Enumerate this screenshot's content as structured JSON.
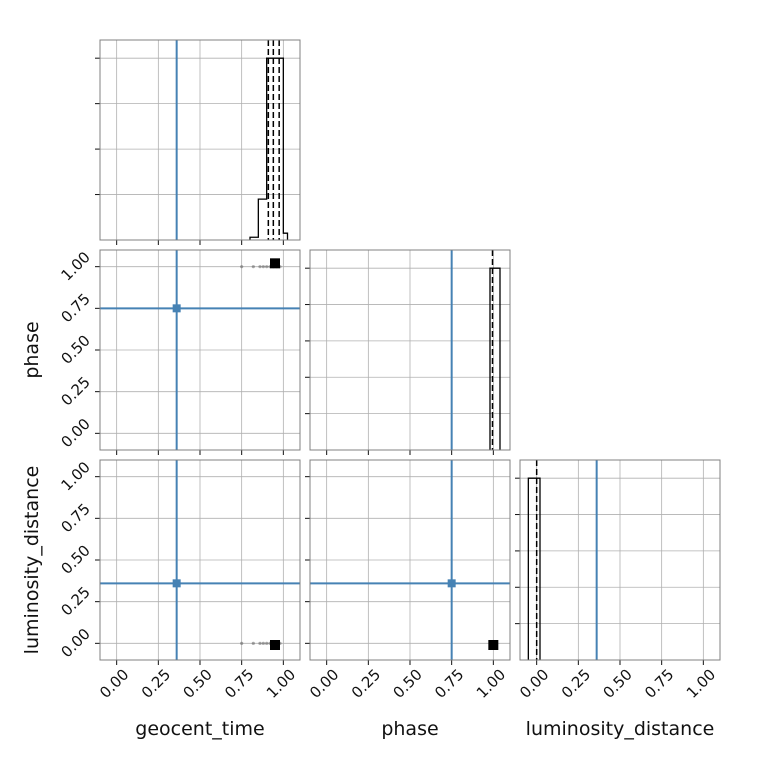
{
  "chart_data": {
    "type": "corner",
    "parameters": [
      "geocent_time",
      "phase",
      "luminosity_distance"
    ],
    "axis_range": [
      -0.1,
      1.1
    ],
    "tick_labels": [
      "0.00",
      "0.25",
      "0.50",
      "0.75",
      "1.00"
    ],
    "grid": true,
    "truths": {
      "geocent_time": 0.36,
      "phase": 0.75,
      "luminosity_distance": 0.36
    },
    "quantiles": {
      "geocent_time": [
        0.91,
        0.94,
        0.975
      ],
      "phase": [
        0.995
      ],
      "luminosity_distance": [
        0.0
      ]
    },
    "histograms": {
      "geocent_time": {
        "edges": [
          0.8,
          0.85,
          0.9,
          0.95,
          1.0,
          1.025
        ],
        "counts": [
          0.06,
          0.9,
          4.0,
          4.0,
          0.15
        ],
        "ylim": [
          0,
          4.4
        ]
      },
      "phase": {
        "edges": [
          0.98,
          1.04
        ],
        "counts": [
          1.0
        ],
        "ylim": [
          0,
          1.1
        ]
      },
      "luminosity_distance": {
        "edges": [
          -0.05,
          0.02
        ],
        "counts": [
          1.0
        ],
        "ylim": [
          0,
          1.1
        ]
      }
    },
    "scatter": {
      "geocent_time-phase": {
        "points": [
          [
            0.75,
            1.0
          ],
          [
            0.82,
            1.0
          ],
          [
            0.86,
            1.0
          ],
          [
            0.88,
            1.0
          ],
          [
            0.9,
            1.0
          ],
          [
            0.92,
            1.0
          ],
          [
            0.94,
            1.0
          ],
          [
            0.96,
            1.0
          ],
          [
            0.98,
            1.0
          ]
        ],
        "density_center": [
          0.95,
          1.02
        ]
      },
      "geocent_time-luminosity_distance": {
        "points": [
          [
            0.75,
            0.0
          ],
          [
            0.82,
            0.0
          ],
          [
            0.86,
            0.0
          ],
          [
            0.88,
            0.0
          ],
          [
            0.9,
            0.0
          ],
          [
            0.92,
            0.0
          ],
          [
            0.94,
            0.0
          ],
          [
            0.96,
            0.0
          ],
          [
            0.98,
            0.0
          ]
        ],
        "density_center": [
          0.95,
          -0.01
        ]
      },
      "phase-luminosity_distance": {
        "points": [],
        "density_center": [
          1.0,
          -0.01
        ]
      }
    },
    "colors": {
      "truth": "#4682b4",
      "hist": "#000000",
      "grid": "#b0b0b0",
      "frame": "#808080"
    }
  }
}
